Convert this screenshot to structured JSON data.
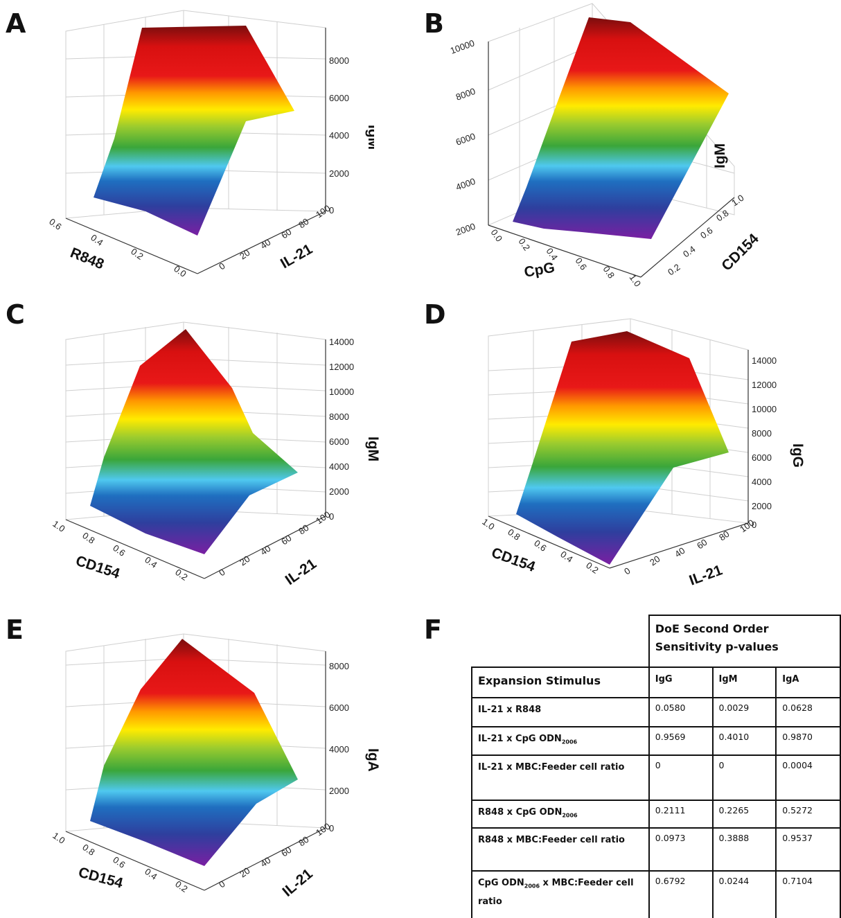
{
  "panels": [
    {
      "id": "A",
      "letter": "A",
      "xlabel": "R848",
      "ylabel": "IL-21",
      "zlabel": "IgM",
      "xticks": [
        "0.6",
        "0.4",
        "0.2",
        "0.0"
      ],
      "yticks": [
        "0",
        "20",
        "40",
        "60",
        "80",
        "100"
      ],
      "zticks": [
        "0",
        "2000",
        "4000",
        "6000",
        "8000"
      ]
    },
    {
      "id": "B",
      "letter": "B",
      "xlabel": "CpG",
      "ylabel": "CD154",
      "zlabel": "IgM",
      "xticks": [
        "0.0",
        "0.2",
        "0.4",
        "0.6",
        "0.8",
        "1.0"
      ],
      "yticks": [
        "0.2",
        "0.4",
        "0.6",
        "0.8",
        "1.0"
      ],
      "zticks": [
        "2000",
        "4000",
        "6000",
        "8000",
        "10000"
      ]
    },
    {
      "id": "C",
      "letter": "C",
      "xlabel": "CD154",
      "ylabel": "IL-21",
      "zlabel": "IgM",
      "xticks": [
        "1.0",
        "0.8",
        "0.6",
        "0.4",
        "0.2"
      ],
      "yticks": [
        "0",
        "20",
        "40",
        "60",
        "80",
        "100"
      ],
      "zticks": [
        "0",
        "2000",
        "4000",
        "6000",
        "8000",
        "10000",
        "12000",
        "14000"
      ]
    },
    {
      "id": "D",
      "letter": "D",
      "xlabel": "CD154",
      "ylabel": "IL-21",
      "zlabel": "IgG",
      "xticks": [
        "1.0",
        "0.8",
        "0.6",
        "0.4",
        "0.2"
      ],
      "yticks": [
        "0",
        "20",
        "40",
        "60",
        "80",
        "100"
      ],
      "zticks": [
        "0",
        "2000",
        "4000",
        "6000",
        "8000",
        "10000",
        "12000",
        "14000"
      ]
    },
    {
      "id": "E",
      "letter": "E",
      "xlabel": "CD154",
      "ylabel": "IL-21",
      "zlabel": "IgA",
      "xticks": [
        "1.0",
        "0.8",
        "0.6",
        "0.4",
        "0.2"
      ],
      "yticks": [
        "0",
        "20",
        "40",
        "60",
        "80",
        "100"
      ],
      "zticks": [
        "0",
        "2000",
        "4000",
        "6000",
        "8000"
      ]
    }
  ],
  "table": {
    "letter": "F",
    "title": "DoE Second Order Sensitivity p-values",
    "col_header": "Expansion Stimulus",
    "cols": [
      "IgG",
      "IgM",
      "IgA"
    ],
    "rows": [
      {
        "label": "IL-21 x R848",
        "values": [
          "0.0580",
          "0.0029",
          "0.0628"
        ]
      },
      {
        "label_pre": "IL-21 x CpG ODN",
        "label_sub": "2006",
        "label_post": "",
        "values": [
          "0.9569",
          "0.4010",
          "0.9870"
        ]
      },
      {
        "label": "IL-21 x MBC:Feeder cell ratio",
        "values": [
          "0",
          "0",
          "0.0004"
        ]
      },
      {
        "label_pre": "R848 x CpG ODN",
        "label_sub": "2006",
        "label_post": "",
        "values": [
          "0.2111",
          "0.2265",
          "0.5272"
        ]
      },
      {
        "label": "R848 x MBC:Feeder cell ratio",
        "values": [
          "0.0973",
          "0.3888",
          "0.9537"
        ]
      },
      {
        "label_pre": "CpG ODN",
        "label_sub": "2006",
        "label_post": " x MBC:Feeder cell ratio",
        "values": [
          "0.6792",
          "0.0244",
          "0.7104"
        ]
      }
    ]
  },
  "chart_data": [
    {
      "type": "surface",
      "title": "",
      "xlabel": "R848",
      "ylabel": "IL-21",
      "zlabel": "IgM",
      "x": [
        0.0,
        0.6
      ],
      "y": [
        0,
        100
      ],
      "zlim": [
        0,
        9000
      ],
      "z": [
        [
          1700,
          5500
        ],
        [
          3000,
          9200
        ]
      ],
      "colormap": "rainbow"
    },
    {
      "type": "surface",
      "title": "",
      "xlabel": "CpG",
      "ylabel": "CD154",
      "zlabel": "IgM",
      "x": [
        0.0,
        1.0
      ],
      "y": [
        0.2,
        1.0
      ],
      "zlim": [
        2000,
        10000
      ],
      "z": [
        [
          2300,
          9800
        ],
        [
          2600,
          8200
        ]
      ],
      "colormap": "rainbow"
    },
    {
      "type": "surface",
      "title": "",
      "xlabel": "CD154",
      "ylabel": "IL-21",
      "zlabel": "IgM",
      "x": [
        0.2,
        1.0
      ],
      "y": [
        0,
        100
      ],
      "zlim": [
        0,
        14000
      ],
      "z": [
        [
          500,
          3800
        ],
        [
          2500,
          14000
        ]
      ],
      "colormap": "rainbow"
    },
    {
      "type": "surface",
      "title": "",
      "xlabel": "CD154",
      "ylabel": "IL-21",
      "zlabel": "IgG",
      "x": [
        0.2,
        1.0
      ],
      "y": [
        0,
        100
      ],
      "zlim": [
        0,
        15000
      ],
      "z": [
        [
          500,
          6000
        ],
        [
          4000,
          14500
        ]
      ],
      "colormap": "rainbow"
    },
    {
      "type": "surface",
      "title": "",
      "xlabel": "CD154",
      "ylabel": "IL-21",
      "zlabel": "IgA",
      "x": [
        0.2,
        1.0
      ],
      "y": [
        0,
        100
      ],
      "zlim": [
        0,
        8500
      ],
      "z": [
        [
          500,
          2500
        ],
        [
          1500,
          8500
        ]
      ],
      "colormap": "rainbow"
    }
  ]
}
